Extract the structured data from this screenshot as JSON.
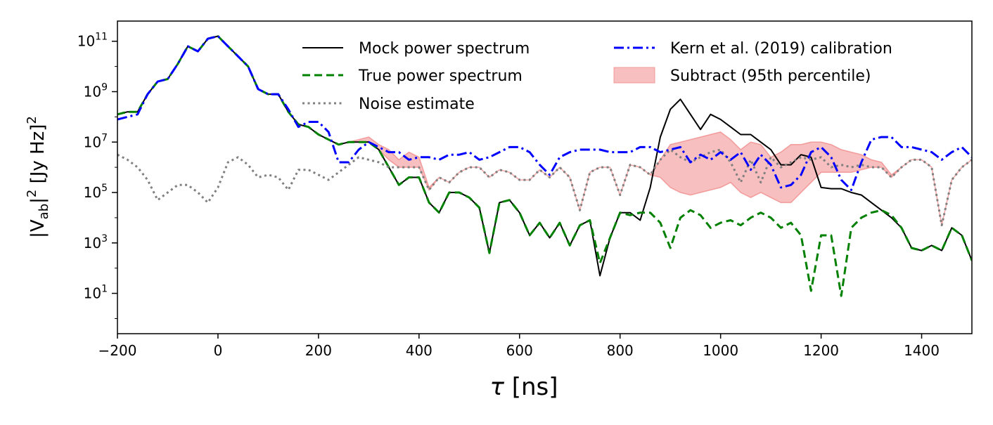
{
  "chart_data": {
    "type": "line",
    "xlabel": "τ [ns]",
    "ylabel": "|V_ab|^2 [Jy Hz]^2",
    "xlim": [
      -200,
      1500
    ],
    "ylim_log10": [
      -0.6,
      11.8
    ],
    "yscale": "log",
    "x_ticks": [
      -200,
      0,
      200,
      400,
      600,
      800,
      1000,
      1200,
      1400
    ],
    "x_tick_labels": [
      "−200",
      "0",
      "200",
      "400",
      "600",
      "800",
      "1000",
      "1200",
      "1400"
    ],
    "y_ticks": [
      {
        "base": "10",
        "exp": "1",
        "log10": 1
      },
      {
        "base": "10",
        "exp": "3",
        "log10": 3
      },
      {
        "base": "10",
        "exp": "5",
        "log10": 5
      },
      {
        "base": "10",
        "exp": "7",
        "log10": 7
      },
      {
        "base": "10",
        "exp": "9",
        "log10": 9
      },
      {
        "base": "10",
        "exp": "11",
        "log10": 11
      }
    ],
    "grid": false,
    "legend_position": "top-right",
    "note": "series y values are given as log10 of |V_ab|^2",
    "x": [
      -200,
      -180,
      -160,
      -140,
      -120,
      -100,
      -80,
      -60,
      -40,
      -20,
      0,
      20,
      40,
      60,
      80,
      100,
      120,
      140,
      160,
      180,
      200,
      220,
      240,
      260,
      280,
      300,
      320,
      340,
      360,
      380,
      400,
      420,
      440,
      460,
      480,
      500,
      520,
      540,
      560,
      580,
      600,
      620,
      640,
      660,
      680,
      700,
      720,
      740,
      760,
      780,
      800,
      820,
      840,
      860,
      880,
      900,
      920,
      940,
      960,
      980,
      1000,
      1020,
      1040,
      1060,
      1080,
      1100,
      1120,
      1140,
      1160,
      1180,
      1200,
      1220,
      1240,
      1260,
      1280,
      1300,
      1320,
      1340,
      1360,
      1380,
      1400,
      1420,
      1440,
      1460,
      1480,
      1500
    ],
    "series": [
      {
        "name": "Mock power spectrum",
        "color": "#000000",
        "style": "solid",
        "y_log10": [
          8.1,
          8.2,
          8.2,
          8.9,
          9.4,
          9.5,
          10.1,
          10.8,
          10.6,
          11.1,
          11.2,
          10.8,
          10.4,
          10.0,
          9.1,
          8.9,
          8.9,
          8.2,
          7.7,
          7.6,
          7.3,
          7.1,
          6.9,
          7.0,
          7.0,
          7.0,
          6.7,
          6.0,
          5.3,
          5.6,
          5.6,
          4.6,
          4.2,
          5.0,
          5.0,
          4.8,
          4.4,
          2.6,
          4.6,
          4.7,
          4.2,
          3.3,
          3.8,
          3.2,
          3.8,
          2.9,
          3.7,
          3.9,
          1.7,
          3.2,
          4.2,
          4.2,
          3.9,
          5.2,
          7.2,
          8.3,
          8.7,
          8.1,
          7.5,
          8.1,
          7.9,
          7.6,
          7.3,
          7.3,
          7.0,
          6.7,
          6.1,
          6.1,
          6.5,
          6.4,
          5.2,
          5.15,
          5.15,
          5.0,
          4.9,
          4.6,
          4.3,
          4.0,
          3.6,
          2.8,
          2.7,
          2.9,
          2.7,
          3.6,
          3.3,
          2.3
        ]
      },
      {
        "name": "True power spectrum",
        "color": "#008000",
        "style": "dashed",
        "y_log10": [
          8.1,
          8.2,
          8.2,
          8.9,
          9.4,
          9.5,
          10.1,
          10.8,
          10.6,
          11.1,
          11.2,
          10.8,
          10.4,
          10.0,
          9.1,
          8.9,
          8.9,
          8.2,
          7.7,
          7.6,
          7.3,
          7.1,
          6.9,
          7.0,
          7.0,
          7.0,
          6.7,
          6.0,
          5.3,
          5.6,
          5.6,
          4.6,
          4.2,
          5.0,
          5.0,
          4.8,
          4.4,
          2.6,
          4.6,
          4.7,
          4.2,
          3.3,
          3.8,
          3.2,
          3.8,
          2.9,
          3.7,
          3.9,
          2.2,
          3.2,
          4.2,
          4.1,
          4.2,
          4.2,
          3.8,
          2.8,
          4.0,
          4.3,
          4.1,
          3.6,
          3.8,
          3.9,
          3.7,
          4.0,
          4.2,
          4.0,
          3.6,
          3.8,
          3.3,
          1.1,
          3.3,
          3.3,
          0.9,
          3.6,
          4.0,
          4.2,
          4.3,
          4.1,
          3.6,
          2.8,
          2.7,
          2.9,
          2.7,
          3.6,
          3.3,
          2.3
        ]
      },
      {
        "name": "Noise estimate",
        "color": "#808080",
        "style": "dotted",
        "y_log10": [
          6.5,
          6.3,
          6.0,
          5.5,
          4.7,
          5.0,
          5.3,
          5.3,
          5.0,
          4.6,
          5.2,
          6.2,
          6.4,
          6.1,
          5.6,
          5.7,
          5.6,
          5.1,
          5.9,
          5.9,
          5.7,
          5.5,
          5.8,
          6.1,
          6.4,
          6.3,
          6.2,
          6.0,
          6.0,
          6.0,
          6.0,
          5.1,
          5.6,
          5.4,
          5.8,
          6.0,
          6.0,
          5.6,
          5.9,
          5.8,
          5.5,
          5.5,
          5.9,
          5.6,
          6.0,
          5.6,
          4.3,
          5.8,
          6.0,
          6.0,
          4.9,
          6.1,
          6.0,
          5.7,
          6.3,
          6.7,
          6.4,
          6.2,
          6.4,
          6.6,
          6.7,
          6.2,
          5.4,
          6.3,
          5.4,
          6.4,
          6.0,
          6.2,
          6.4,
          6.3,
          6.4,
          6.0,
          6.1,
          6.0,
          6.1,
          6.0,
          6.0,
          5.6,
          6.0,
          6.3,
          6.3,
          6.0,
          3.7,
          5.5,
          6.0,
          6.3
        ]
      },
      {
        "name": "Kern et al. (2019) calibration",
        "color": "#0000ff",
        "style": "dashdot",
        "y_log10": [
          7.9,
          8.0,
          8.1,
          8.9,
          9.4,
          9.5,
          10.1,
          10.8,
          10.6,
          11.1,
          11.2,
          10.8,
          10.4,
          10.0,
          9.1,
          8.9,
          8.9,
          8.3,
          7.6,
          7.8,
          7.8,
          7.4,
          6.2,
          6.2,
          6.7,
          7.0,
          6.8,
          6.6,
          6.6,
          6.3,
          6.4,
          6.4,
          6.3,
          6.5,
          6.5,
          6.6,
          6.3,
          6.4,
          6.6,
          6.8,
          6.8,
          6.6,
          6.1,
          5.7,
          6.4,
          6.6,
          6.7,
          6.7,
          6.7,
          6.6,
          6.6,
          6.6,
          6.8,
          6.8,
          6.6,
          6.7,
          6.8,
          6.2,
          6.5,
          6.3,
          6.6,
          6.3,
          6.6,
          5.9,
          6.5,
          6.1,
          5.2,
          5.3,
          5.7,
          6.6,
          6.8,
          6.4,
          5.5,
          5.1,
          6.2,
          7.1,
          7.2,
          7.2,
          6.8,
          6.8,
          6.7,
          6.6,
          6.3,
          6.6,
          6.8,
          6.4
        ]
      }
    ],
    "band": {
      "name": "Subtract (95th percentile)",
      "color": "#f08080",
      "x": [
        200,
        220,
        240,
        260,
        280,
        300,
        320,
        340,
        360,
        380,
        400,
        420,
        440,
        460,
        480,
        500,
        520,
        540,
        560,
        580,
        600,
        620,
        640,
        660,
        680,
        700,
        720,
        740,
        760,
        780,
        800,
        820,
        840,
        860,
        880,
        900,
        920,
        940,
        960,
        980,
        1000,
        1020,
        1040,
        1060,
        1080,
        1100,
        1120,
        1140,
        1160,
        1180,
        1200,
        1220,
        1240,
        1260,
        1280,
        1300,
        1320,
        1340,
        1360,
        1380,
        1400,
        1420,
        1440,
        1460,
        1480,
        1500
      ],
      "upper_log10": [
        7.3,
        7.1,
        6.9,
        7.0,
        7.1,
        7.2,
        6.9,
        6.7,
        6.3,
        6.6,
        6.4,
        5.2,
        5.6,
        5.4,
        5.8,
        6.0,
        6.0,
        5.6,
        5.9,
        5.8,
        5.5,
        5.5,
        5.9,
        5.6,
        6.0,
        5.6,
        4.3,
        5.8,
        6.0,
        6.0,
        4.9,
        6.1,
        6.0,
        5.7,
        6.3,
        6.9,
        7.0,
        7.1,
        7.2,
        7.3,
        7.4,
        7.1,
        6.7,
        7.0,
        6.9,
        6.4,
        6.6,
        6.9,
        6.9,
        7.0,
        7.0,
        6.9,
        6.7,
        6.6,
        6.5,
        6.3,
        6.2,
        5.7,
        6.0,
        6.3,
        6.3,
        6.0,
        3.7,
        5.5,
        6.0,
        6.3
      ],
      "lower_log10": [
        7.3,
        7.1,
        6.9,
        7.0,
        7.0,
        7.0,
        6.7,
        6.3,
        6.0,
        6.0,
        6.0,
        5.1,
        5.6,
        5.4,
        5.8,
        6.0,
        6.0,
        5.6,
        5.9,
        5.8,
        5.5,
        5.5,
        5.9,
        5.6,
        6.0,
        5.6,
        4.3,
        5.8,
        6.0,
        6.0,
        4.9,
        6.1,
        6.0,
        5.7,
        5.6,
        5.2,
        5.0,
        4.9,
        5.0,
        5.1,
        5.2,
        5.4,
        5.0,
        4.8,
        5.0,
        4.8,
        4.6,
        4.6,
        5.0,
        5.4,
        5.8,
        5.8,
        5.8,
        5.8,
        5.9,
        6.0,
        6.0,
        5.6,
        6.0,
        6.3,
        6.3,
        6.0,
        3.7,
        5.5,
        6.0,
        6.3
      ]
    }
  }
}
